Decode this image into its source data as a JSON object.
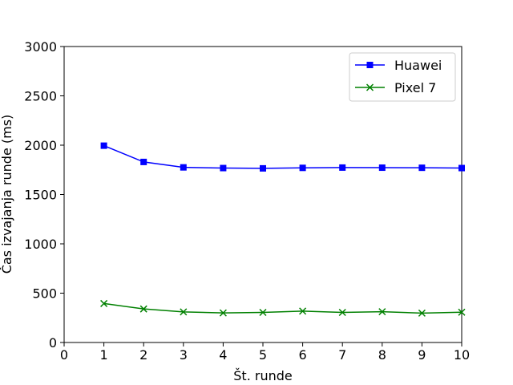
{
  "chart_data": {
    "type": "line",
    "title": "",
    "xlabel": "Št. runde",
    "ylabel": "Čas izvajanja runde (ms)",
    "xlim": [
      0,
      10
    ],
    "ylim": [
      0,
      3000
    ],
    "xticks": [
      0,
      1,
      2,
      3,
      4,
      5,
      6,
      7,
      8,
      9,
      10
    ],
    "yticks": [
      0,
      500,
      1000,
      1500,
      2000,
      2500,
      3000
    ],
    "grid": false,
    "legend_position": "top-right",
    "x": [
      1,
      2,
      3,
      4,
      5,
      6,
      7,
      8,
      9,
      10
    ],
    "series": [
      {
        "name": "Huawei",
        "color": "#0000ff",
        "marker": "square",
        "values": [
          1995,
          1830,
          1775,
          1768,
          1765,
          1770,
          1773,
          1772,
          1771,
          1768
        ]
      },
      {
        "name": "Pixel 7",
        "color": "#008000",
        "marker": "x",
        "values": [
          395,
          340,
          310,
          300,
          305,
          318,
          305,
          312,
          298,
          307
        ]
      }
    ]
  }
}
